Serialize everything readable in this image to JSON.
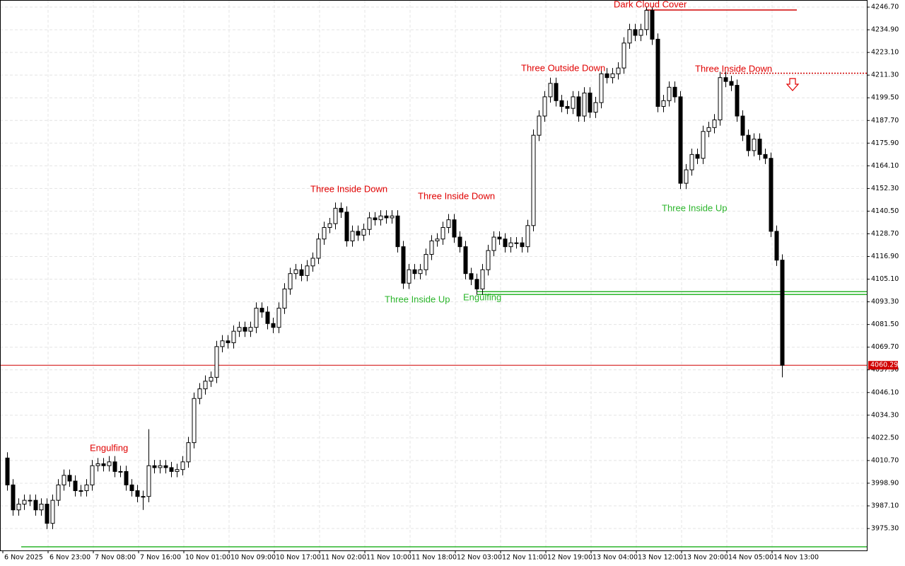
{
  "chart_data": {
    "type": "candlestick",
    "open": [
      4012,
      3998,
      3985,
      3988,
      3990,
      3990,
      3985,
      3988,
      3978,
      3990,
      3998,
      4003,
      4000,
      3995,
      3995,
      3998,
      4008,
      4009,
      4008,
      4010,
      4005,
      4005,
      3998,
      3995,
      3992,
      3992,
      4008,
      4007,
      4008,
      4007,
      4005,
      4006,
      4010,
      4020,
      4043,
      4048,
      4052,
      4054,
      4070,
      4073,
      4072,
      4078,
      4080,
      4078,
      4080,
      4090,
      4088,
      4082,
      4080,
      4090,
      4100,
      4108,
      4110,
      4107,
      4112,
      4116,
      4126,
      4132,
      4134,
      4142,
      4140,
      4125,
      4130,
      4128,
      4131,
      4137,
      4136,
      4138,
      4137,
      4138,
      4122,
      4103,
      4110,
      4108,
      4110,
      4118,
      4125,
      4126,
      4132,
      4136,
      4127,
      4122,
      4108,
      4105,
      4100,
      4110,
      4120,
      4127,
      4126,
      4122,
      4124,
      4124,
      4122,
      4133,
      4180,
      4190,
      4200,
      4207,
      4198,
      4195,
      4194,
      4200,
      4190,
      4202,
      4192,
      4197,
      4212,
      4210,
      4212,
      4215,
      4228,
      4235,
      4232,
      4235,
      4245,
      4230,
      4195,
      4198,
      4205,
      4200,
      4155,
      4162,
      4170,
      4168,
      4182,
      4184,
      4188,
      4210,
      4208,
      4206,
      4190,
      4180,
      4172,
      4178,
      4170,
      4168,
      4130,
      4115
    ],
    "high": [
      4015,
      4001,
      3991,
      3993,
      3993,
      3993,
      3991,
      3991,
      3993,
      4001,
      4006,
      4006,
      4003,
      3998,
      4001,
      4011,
      4012,
      4012,
      4013,
      4013,
      4008,
      4008,
      4001,
      3998,
      3995,
      4027,
      4011,
      4011,
      4011,
      4010,
      4009,
      4013,
      4023,
      4046,
      4051,
      4055,
      4057,
      4073,
      4076,
      4076,
      4081,
      4083,
      4083,
      4083,
      4093,
      4093,
      4091,
      4085,
      4093,
      4103,
      4111,
      4113,
      4113,
      4115,
      4119,
      4129,
      4135,
      4137,
      4145,
      4145,
      4143,
      4133,
      4133,
      4134,
      4140,
      4140,
      4141,
      4141,
      4141,
      4141,
      4125,
      4113,
      4113,
      4113,
      4121,
      4128,
      4129,
      4135,
      4139,
      4139,
      4130,
      4125,
      4111,
      4108,
      4113,
      4123,
      4130,
      4130,
      4129,
      4127,
      4127,
      4127,
      4136,
      4183,
      4193,
      4203,
      4210,
      4210,
      4201,
      4198,
      4203,
      4203,
      4205,
      4205,
      4200,
      4215,
      4215,
      4215,
      4218,
      4231,
      4238,
      4238,
      4238,
      4247,
      4247,
      4233,
      4201,
      4208,
      4208,
      4203,
      4165,
      4173,
      4173,
      4185,
      4187,
      4191,
      4213,
      4213,
      4211,
      4209,
      4193,
      4183,
      4181,
      4181,
      4173,
      4171,
      4133,
      4118
    ],
    "low": [
      3995,
      3982,
      3982,
      3985,
      3987,
      3982,
      3982,
      3975,
      3975,
      3987,
      3995,
      3997,
      3992,
      3992,
      3992,
      3995,
      4005,
      4005,
      4005,
      4002,
      4002,
      3995,
      3992,
      3989,
      3985,
      3989,
      4004,
      4004,
      4004,
      4002,
      4002,
      4003,
      4007,
      4017,
      4040,
      4045,
      4049,
      4051,
      4067,
      4069,
      4069,
      4075,
      4075,
      4075,
      4077,
      4085,
      4079,
      4077,
      4077,
      4087,
      4097,
      4105,
      4104,
      4104,
      4109,
      4113,
      4123,
      4129,
      4131,
      4137,
      4122,
      4122,
      4125,
      4125,
      4128,
      4133,
      4133,
      4134,
      4134,
      4119,
      4100,
      4100,
      4105,
      4105,
      4107,
      4115,
      4122,
      4123,
      4129,
      4124,
      4119,
      4105,
      4102,
      4097,
      4097,
      4107,
      4117,
      4123,
      4119,
      4119,
      4121,
      4119,
      4119,
      4130,
      4177,
      4187,
      4197,
      4195,
      4192,
      4191,
      4191,
      4187,
      4187,
      4189,
      4189,
      4194,
      4207,
      4207,
      4209,
      4212,
      4225,
      4229,
      4229,
      4232,
      4227,
      4192,
      4192,
      4195,
      4197,
      4152,
      4152,
      4159,
      4165,
      4165,
      4179,
      4181,
      4185,
      4205,
      4203,
      4187,
      4177,
      4169,
      4169,
      4167,
      4165,
      4127,
      4112,
      4054
    ],
    "close": [
      3998,
      3985,
      3988,
      3990,
      3990,
      3985,
      3988,
      3978,
      3990,
      3998,
      4003,
      4000,
      3995,
      3995,
      3998,
      4008,
      4009,
      4008,
      4010,
      4005,
      4005,
      3998,
      3995,
      3992,
      3992,
      4008,
      4007,
      4008,
      4007,
      4005,
      4006,
      4010,
      4020,
      4043,
      4048,
      4052,
      4054,
      4070,
      4073,
      4072,
      4078,
      4080,
      4078,
      4080,
      4090,
      4088,
      4082,
      4080,
      4090,
      4100,
      4108,
      4110,
      4107,
      4112,
      4116,
      4126,
      4132,
      4134,
      4142,
      4140,
      4125,
      4130,
      4128,
      4131,
      4137,
      4136,
      4138,
      4137,
      4138,
      4122,
      4103,
      4110,
      4108,
      4110,
      4118,
      4125,
      4126,
      4132,
      4136,
      4127,
      4122,
      4108,
      4105,
      4100,
      4110,
      4120,
      4127,
      4126,
      4122,
      4124,
      4124,
      4122,
      4133,
      4180,
      4190,
      4200,
      4207,
      4198,
      4195,
      4194,
      4200,
      4190,
      4202,
      4192,
      4197,
      4212,
      4210,
      4212,
      4215,
      4228,
      4235,
      4232,
      4235,
      4245,
      4230,
      4195,
      4198,
      4205,
      4200,
      4155,
      4162,
      4170,
      4168,
      4182,
      4184,
      4188,
      4210,
      4208,
      4206,
      4190,
      4180,
      4172,
      4178,
      4170,
      4168,
      4130,
      4115,
      4060.29
    ],
    "ylim": [
      3963.9,
      4250.4
    ],
    "yticks": [
      {
        "value": 4246.7,
        "label": "4246.70"
      },
      {
        "value": 4234.9,
        "label": "4234.90"
      },
      {
        "value": 4223.1,
        "label": "4223.10"
      },
      {
        "value": 4211.3,
        "label": "4211.30"
      },
      {
        "value": 4199.5,
        "label": "4199.50"
      },
      {
        "value": 4187.7,
        "label": "4187.70"
      },
      {
        "value": 4175.9,
        "label": "4175.90"
      },
      {
        "value": 4164.1,
        "label": "4164.10"
      },
      {
        "value": 4152.3,
        "label": "4152.30"
      },
      {
        "value": 4140.5,
        "label": "4140.50"
      },
      {
        "value": 4128.7,
        "label": "4128.70"
      },
      {
        "value": 4116.9,
        "label": "4116.90"
      },
      {
        "value": 4105.1,
        "label": "4105.10"
      },
      {
        "value": 4093.3,
        "label": "4093.30"
      },
      {
        "value": 4081.5,
        "label": "4081.50"
      },
      {
        "value": 4069.7,
        "label": "4069.70"
      },
      {
        "value": 4057.9,
        "label": "4057.90"
      },
      {
        "value": 4046.1,
        "label": "4046.10"
      },
      {
        "value": 4034.3,
        "label": "4034.30"
      },
      {
        "value": 4022.5,
        "label": "4022.50"
      },
      {
        "value": 4010.7,
        "label": "4010.70"
      },
      {
        "value": 3998.9,
        "label": "3998.90"
      },
      {
        "value": 3987.1,
        "label": "3987.10"
      },
      {
        "value": 3975.3,
        "label": "3975.30"
      }
    ],
    "xticks": [
      {
        "value": 0,
        "label": "6 Nov 2025"
      },
      {
        "value": 8,
        "label": "6 Nov 23:00"
      },
      {
        "value": 16,
        "label": "7 Nov 08:00"
      },
      {
        "value": 24,
        "label": "7 Nov 16:00"
      },
      {
        "value": 32,
        "label": "10 Nov 01:00"
      },
      {
        "value": 40,
        "label": "10 Nov 09:00"
      },
      {
        "value": 48,
        "label": "10 Nov 17:00"
      },
      {
        "value": 56,
        "label": "11 Nov 02:00"
      },
      {
        "value": 64,
        "label": "11 Nov 10:00"
      },
      {
        "value": 72,
        "label": "11 Nov 18:00"
      },
      {
        "value": 80,
        "label": "12 Nov 03:00"
      },
      {
        "value": 88,
        "label": "12 Nov 11:00"
      },
      {
        "value": 96,
        "label": "12 Nov 19:00"
      },
      {
        "value": 104,
        "label": "13 Nov 04:00"
      },
      {
        "value": 112,
        "label": "13 Nov 12:00"
      },
      {
        "value": 120,
        "label": "13 Nov 20:00"
      },
      {
        "value": 128,
        "label": "14 Nov 05:00"
      },
      {
        "value": 136,
        "label": "14 Nov 13:00"
      }
    ],
    "grid": true,
    "up_color": "#ffffff",
    "down_color": "#000000",
    "price_line_color": "#d00000",
    "levels": [
      {
        "value": 4245.2,
        "color": "#d00000",
        "dashed": false
      },
      {
        "value": 4212.3,
        "color": "#d00000",
        "dashed": true
      },
      {
        "value": 4098.6,
        "color": "#2bb52b",
        "dashed": false
      },
      {
        "value": 4097.1,
        "color": "#2bb52b",
        "dashed": false
      },
      {
        "value": 3965.8,
        "color": "#2bb52b",
        "dashed": false
      }
    ],
    "annotations": [
      {
        "text": "Dark Cloud Cover",
        "color": "#e00000"
      },
      {
        "text": "Three Outside Down",
        "color": "#e00000"
      },
      {
        "text": "Three Inside Down",
        "color": "#e00000"
      },
      {
        "text": "Three Inside Down",
        "color": "#e00000"
      },
      {
        "text": "Three Inside Down",
        "color": "#e00000"
      },
      {
        "text": "Three Inside Up",
        "color": "#2bb52b"
      },
      {
        "text": "Three Inside Up",
        "color": "#2bb52b"
      },
      {
        "text": "Engulfing",
        "color": "#2bb52b"
      },
      {
        "text": "Engulfing",
        "color": "#e00000"
      }
    ]
  }
}
